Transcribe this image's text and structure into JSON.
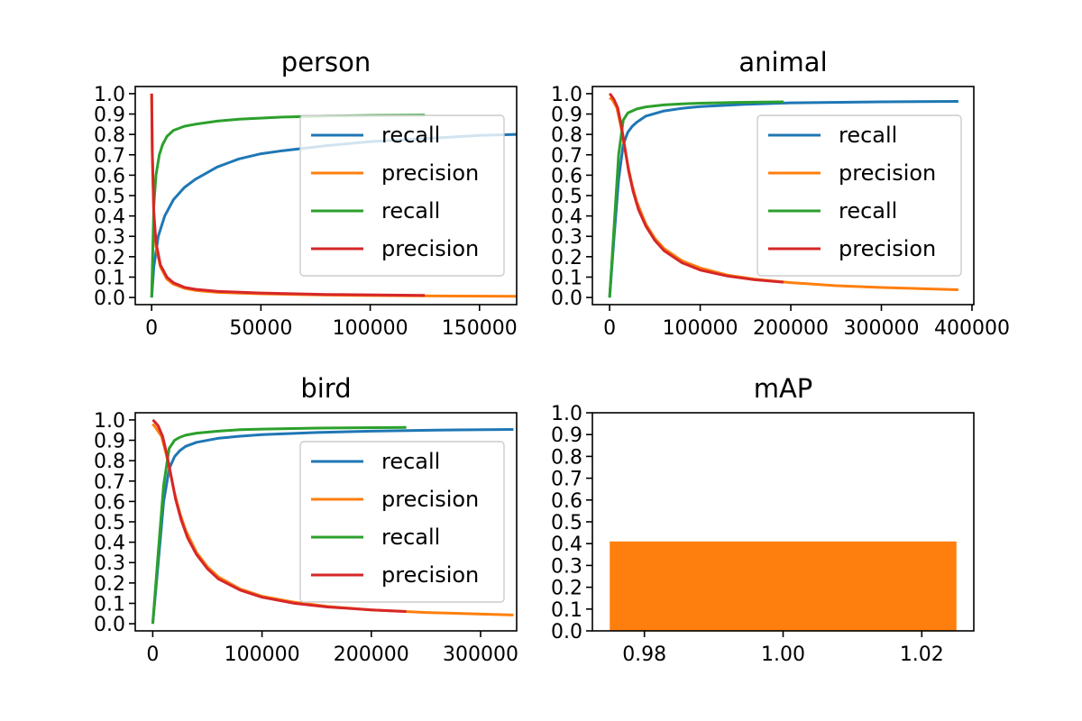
{
  "chart_data": [
    {
      "type": "line",
      "title": "person",
      "xlim": [
        -7500,
        167000
      ],
      "ylim": [
        -0.035,
        1.035
      ],
      "xticks": [
        0,
        50000,
        100000,
        150000
      ],
      "xtick_labels": [
        "0",
        "50000",
        "100000",
        "150000"
      ],
      "yticks": [
        0.0,
        0.1,
        0.2,
        0.3,
        0.4,
        0.5,
        0.6,
        0.7,
        0.8,
        0.9,
        1.0
      ],
      "ytick_labels": [
        "0.0",
        "0.1",
        "0.2",
        "0.3",
        "0.4",
        "0.5",
        "0.6",
        "0.7",
        "0.8",
        "0.9",
        "1.0"
      ],
      "legend_position": "center-right",
      "series": [
        {
          "name": "recall",
          "color": "#1f77b4",
          "x": [
            0,
            1000,
            3000,
            6000,
            10000,
            15000,
            20000,
            30000,
            40000,
            50000,
            60000,
            80000,
            100000,
            125000,
            150000,
            167000
          ],
          "y": [
            0,
            0.15,
            0.3,
            0.4,
            0.48,
            0.54,
            0.58,
            0.64,
            0.68,
            0.705,
            0.72,
            0.745,
            0.765,
            0.78,
            0.795,
            0.8
          ]
        },
        {
          "name": "precision",
          "color": "#ff7f0e",
          "x": [
            0,
            300,
            1000,
            2000,
            4000,
            7000,
            10000,
            15000,
            20000,
            30000,
            50000,
            80000,
            120000,
            167000
          ],
          "y": [
            1.0,
            0.7,
            0.4,
            0.25,
            0.15,
            0.09,
            0.065,
            0.045,
            0.035,
            0.025,
            0.018,
            0.012,
            0.008,
            0.006
          ]
        },
        {
          "name": "recall",
          "color": "#2ca02c",
          "x": [
            0,
            1000,
            2000,
            3500,
            5000,
            7000,
            10000,
            15000,
            20000,
            30000,
            40000,
            60000,
            80000,
            100000,
            125000
          ],
          "y": [
            0,
            0.45,
            0.6,
            0.7,
            0.75,
            0.79,
            0.82,
            0.84,
            0.85,
            0.865,
            0.875,
            0.885,
            0.89,
            0.893,
            0.895
          ]
        },
        {
          "name": "precision",
          "color": "#d62728",
          "x": [
            0,
            300,
            1000,
            2000,
            4000,
            7000,
            10000,
            15000,
            20000,
            30000,
            50000,
            80000,
            125000
          ],
          "y": [
            1.0,
            0.72,
            0.42,
            0.27,
            0.16,
            0.1,
            0.072,
            0.05,
            0.04,
            0.03,
            0.022,
            0.015,
            0.01
          ]
        }
      ]
    },
    {
      "type": "line",
      "title": "animal",
      "xlim": [
        -19000,
        402000
      ],
      "ylim": [
        -0.035,
        1.035
      ],
      "xticks": [
        0,
        100000,
        200000,
        300000,
        400000
      ],
      "xtick_labels": [
        "0",
        "100000",
        "200000",
        "300000",
        "400000"
      ],
      "yticks": [
        0.0,
        0.1,
        0.2,
        0.3,
        0.4,
        0.5,
        0.6,
        0.7,
        0.8,
        0.9,
        1.0
      ],
      "ytick_labels": [
        "0.0",
        "0.1",
        "0.2",
        "0.3",
        "0.4",
        "0.5",
        "0.6",
        "0.7",
        "0.8",
        "0.9",
        "1.0"
      ],
      "legend_position": "center-right",
      "series": [
        {
          "name": "recall",
          "color": "#1f77b4",
          "x": [
            0,
            5000,
            10000,
            15000,
            20000,
            25000,
            30000,
            40000,
            60000,
            80000,
            100000,
            150000,
            200000,
            300000,
            385000
          ],
          "y": [
            0,
            0.3,
            0.58,
            0.75,
            0.81,
            0.84,
            0.86,
            0.89,
            0.915,
            0.928,
            0.937,
            0.948,
            0.955,
            0.96,
            0.962
          ]
        },
        {
          "name": "precision",
          "color": "#ff7f0e",
          "x": [
            0,
            3000,
            8000,
            12000,
            16000,
            20000,
            25000,
            30000,
            40000,
            50000,
            60000,
            80000,
            100000,
            130000,
            160000,
            200000,
            250000,
            300000,
            385000
          ],
          "y": [
            0.98,
            0.97,
            0.93,
            0.85,
            0.75,
            0.65,
            0.55,
            0.47,
            0.36,
            0.29,
            0.24,
            0.18,
            0.145,
            0.11,
            0.09,
            0.073,
            0.058,
            0.049,
            0.038
          ]
        },
        {
          "name": "recall",
          "color": "#2ca02c",
          "x": [
            0,
            5000,
            10000,
            15000,
            20000,
            25000,
            30000,
            40000,
            60000,
            80000,
            100000,
            140000,
            192000
          ],
          "y": [
            0,
            0.35,
            0.7,
            0.87,
            0.905,
            0.915,
            0.925,
            0.935,
            0.945,
            0.95,
            0.953,
            0.957,
            0.96
          ]
        },
        {
          "name": "precision",
          "color": "#d62728",
          "x": [
            0,
            2000,
            5000,
            9000,
            13000,
            17000,
            21000,
            26000,
            32000,
            40000,
            50000,
            60000,
            80000,
            100000,
            130000,
            160000,
            192000
          ],
          "y": [
            1.0,
            0.99,
            0.97,
            0.93,
            0.84,
            0.73,
            0.62,
            0.52,
            0.43,
            0.35,
            0.28,
            0.23,
            0.17,
            0.135,
            0.105,
            0.087,
            0.075
          ]
        }
      ]
    },
    {
      "type": "line",
      "title": "bird",
      "xlim": [
        -16000,
        333000
      ],
      "ylim": [
        -0.035,
        1.035
      ],
      "xticks": [
        0,
        100000,
        200000,
        300000
      ],
      "xtick_labels": [
        "0",
        "100000",
        "200000",
        "300000"
      ],
      "yticks": [
        0.0,
        0.1,
        0.2,
        0.3,
        0.4,
        0.5,
        0.6,
        0.7,
        0.8,
        0.9,
        1.0
      ],
      "ytick_labels": [
        "0.0",
        "0.1",
        "0.2",
        "0.3",
        "0.4",
        "0.5",
        "0.6",
        "0.7",
        "0.8",
        "0.9",
        "1.0"
      ],
      "legend_position": "center-right",
      "series": [
        {
          "name": "recall",
          "color": "#1f77b4",
          "x": [
            0,
            5000,
            10000,
            15000,
            20000,
            25000,
            30000,
            40000,
            60000,
            80000,
            100000,
            150000,
            200000,
            260000,
            330000
          ],
          "y": [
            0,
            0.3,
            0.6,
            0.76,
            0.82,
            0.85,
            0.87,
            0.89,
            0.91,
            0.92,
            0.928,
            0.938,
            0.945,
            0.95,
            0.953
          ]
        },
        {
          "name": "precision",
          "color": "#ff7f0e",
          "x": [
            0,
            3000,
            8000,
            12000,
            16000,
            20000,
            25000,
            30000,
            40000,
            50000,
            60000,
            80000,
            100000,
            130000,
            160000,
            200000,
            250000,
            330000
          ],
          "y": [
            0.98,
            0.96,
            0.92,
            0.84,
            0.74,
            0.64,
            0.54,
            0.46,
            0.35,
            0.28,
            0.23,
            0.17,
            0.135,
            0.105,
            0.085,
            0.068,
            0.055,
            0.043
          ]
        },
        {
          "name": "recall",
          "color": "#2ca02c",
          "x": [
            0,
            5000,
            10000,
            15000,
            20000,
            25000,
            30000,
            40000,
            60000,
            80000,
            100000,
            150000,
            232000
          ],
          "y": [
            0,
            0.35,
            0.68,
            0.86,
            0.9,
            0.915,
            0.925,
            0.935,
            0.945,
            0.952,
            0.955,
            0.96,
            0.963
          ]
        },
        {
          "name": "precision",
          "color": "#d62728",
          "x": [
            0,
            2000,
            5000,
            9000,
            13000,
            17000,
            21000,
            26000,
            32000,
            40000,
            50000,
            60000,
            80000,
            100000,
            130000,
            160000,
            200000,
            232000
          ],
          "y": [
            1.0,
            0.99,
            0.97,
            0.92,
            0.83,
            0.72,
            0.61,
            0.51,
            0.42,
            0.34,
            0.27,
            0.22,
            0.165,
            0.13,
            0.1,
            0.082,
            0.068,
            0.06
          ]
        }
      ]
    },
    {
      "type": "bar",
      "title": "mAP",
      "xlim": [
        0.9725,
        1.0275
      ],
      "ylim": [
        0.0,
        1.0
      ],
      "xticks": [
        0.98,
        1.0,
        1.02
      ],
      "xtick_labels": [
        "0.98",
        "1.00",
        "1.02"
      ],
      "yticks": [
        0.0,
        0.1,
        0.2,
        0.3,
        0.4,
        0.5,
        0.6,
        0.7,
        0.8,
        0.9,
        1.0
      ],
      "ytick_labels": [
        "0.0",
        "0.1",
        "0.2",
        "0.3",
        "0.4",
        "0.5",
        "0.6",
        "0.7",
        "0.8",
        "0.9",
        "1.0"
      ],
      "bar": {
        "x": 1.0,
        "width": 0.05,
        "value": 0.41,
        "color": "#ff7f0e"
      }
    }
  ]
}
